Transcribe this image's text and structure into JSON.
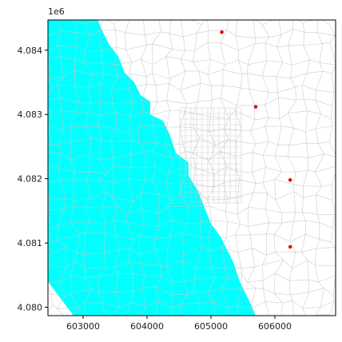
{
  "chart_data": {
    "type": "scatter",
    "description": "Unstructured mesh map with shaded region and well markers",
    "xlim": [
      602450,
      606950
    ],
    "ylim": [
      4079870,
      4084470
    ],
    "y_offset_label": "1e6",
    "x_ticks": [
      {
        "value": 603000,
        "label": "603000"
      },
      {
        "value": 604000,
        "label": "604000"
      },
      {
        "value": 605000,
        "label": "605000"
      },
      {
        "value": 606000,
        "label": "606000"
      }
    ],
    "y_ticks": [
      {
        "value": 4080000,
        "label": "4.080"
      },
      {
        "value": 4081000,
        "label": "4.081"
      },
      {
        "value": 4082000,
        "label": "4.082"
      },
      {
        "value": 4083000,
        "label": "4.083"
      },
      {
        "value": 4084000,
        "label": "4.084"
      }
    ],
    "shaded_region": {
      "color": "#00ffff",
      "boundary": [
        [
          602450,
          4084470
        ],
        [
          603230,
          4084470
        ],
        [
          603300,
          4084300
        ],
        [
          603400,
          4084100
        ],
        [
          603550,
          4083900
        ],
        [
          603650,
          4083650
        ],
        [
          603800,
          4083500
        ],
        [
          603900,
          4083300
        ],
        [
          604050,
          4083200
        ],
        [
          604050,
          4083000
        ],
        [
          604250,
          4082900
        ],
        [
          604350,
          4082700
        ],
        [
          604450,
          4082400
        ],
        [
          604650,
          4082250
        ],
        [
          604650,
          4082050
        ],
        [
          604800,
          4081800
        ],
        [
          604900,
          4081550
        ],
        [
          605000,
          4081300
        ],
        [
          605150,
          4081100
        ],
        [
          605250,
          4080900
        ],
        [
          605350,
          4080700
        ],
        [
          605450,
          4080400
        ],
        [
          605600,
          4080100
        ],
        [
          605700,
          4079870
        ],
        [
          602850,
          4079870
        ],
        [
          602450,
          4080400
        ]
      ]
    },
    "mesh_color": "#c8c8c8",
    "series": [
      {
        "marker_color": "#e01010",
        "points": [
          {
            "x": 605170,
            "y": 4084280
          },
          {
            "x": 605700,
            "y": 4083120
          },
          {
            "x": 606240,
            "y": 4081980
          },
          {
            "x": 606240,
            "y": 4080940
          }
        ]
      }
    ]
  }
}
